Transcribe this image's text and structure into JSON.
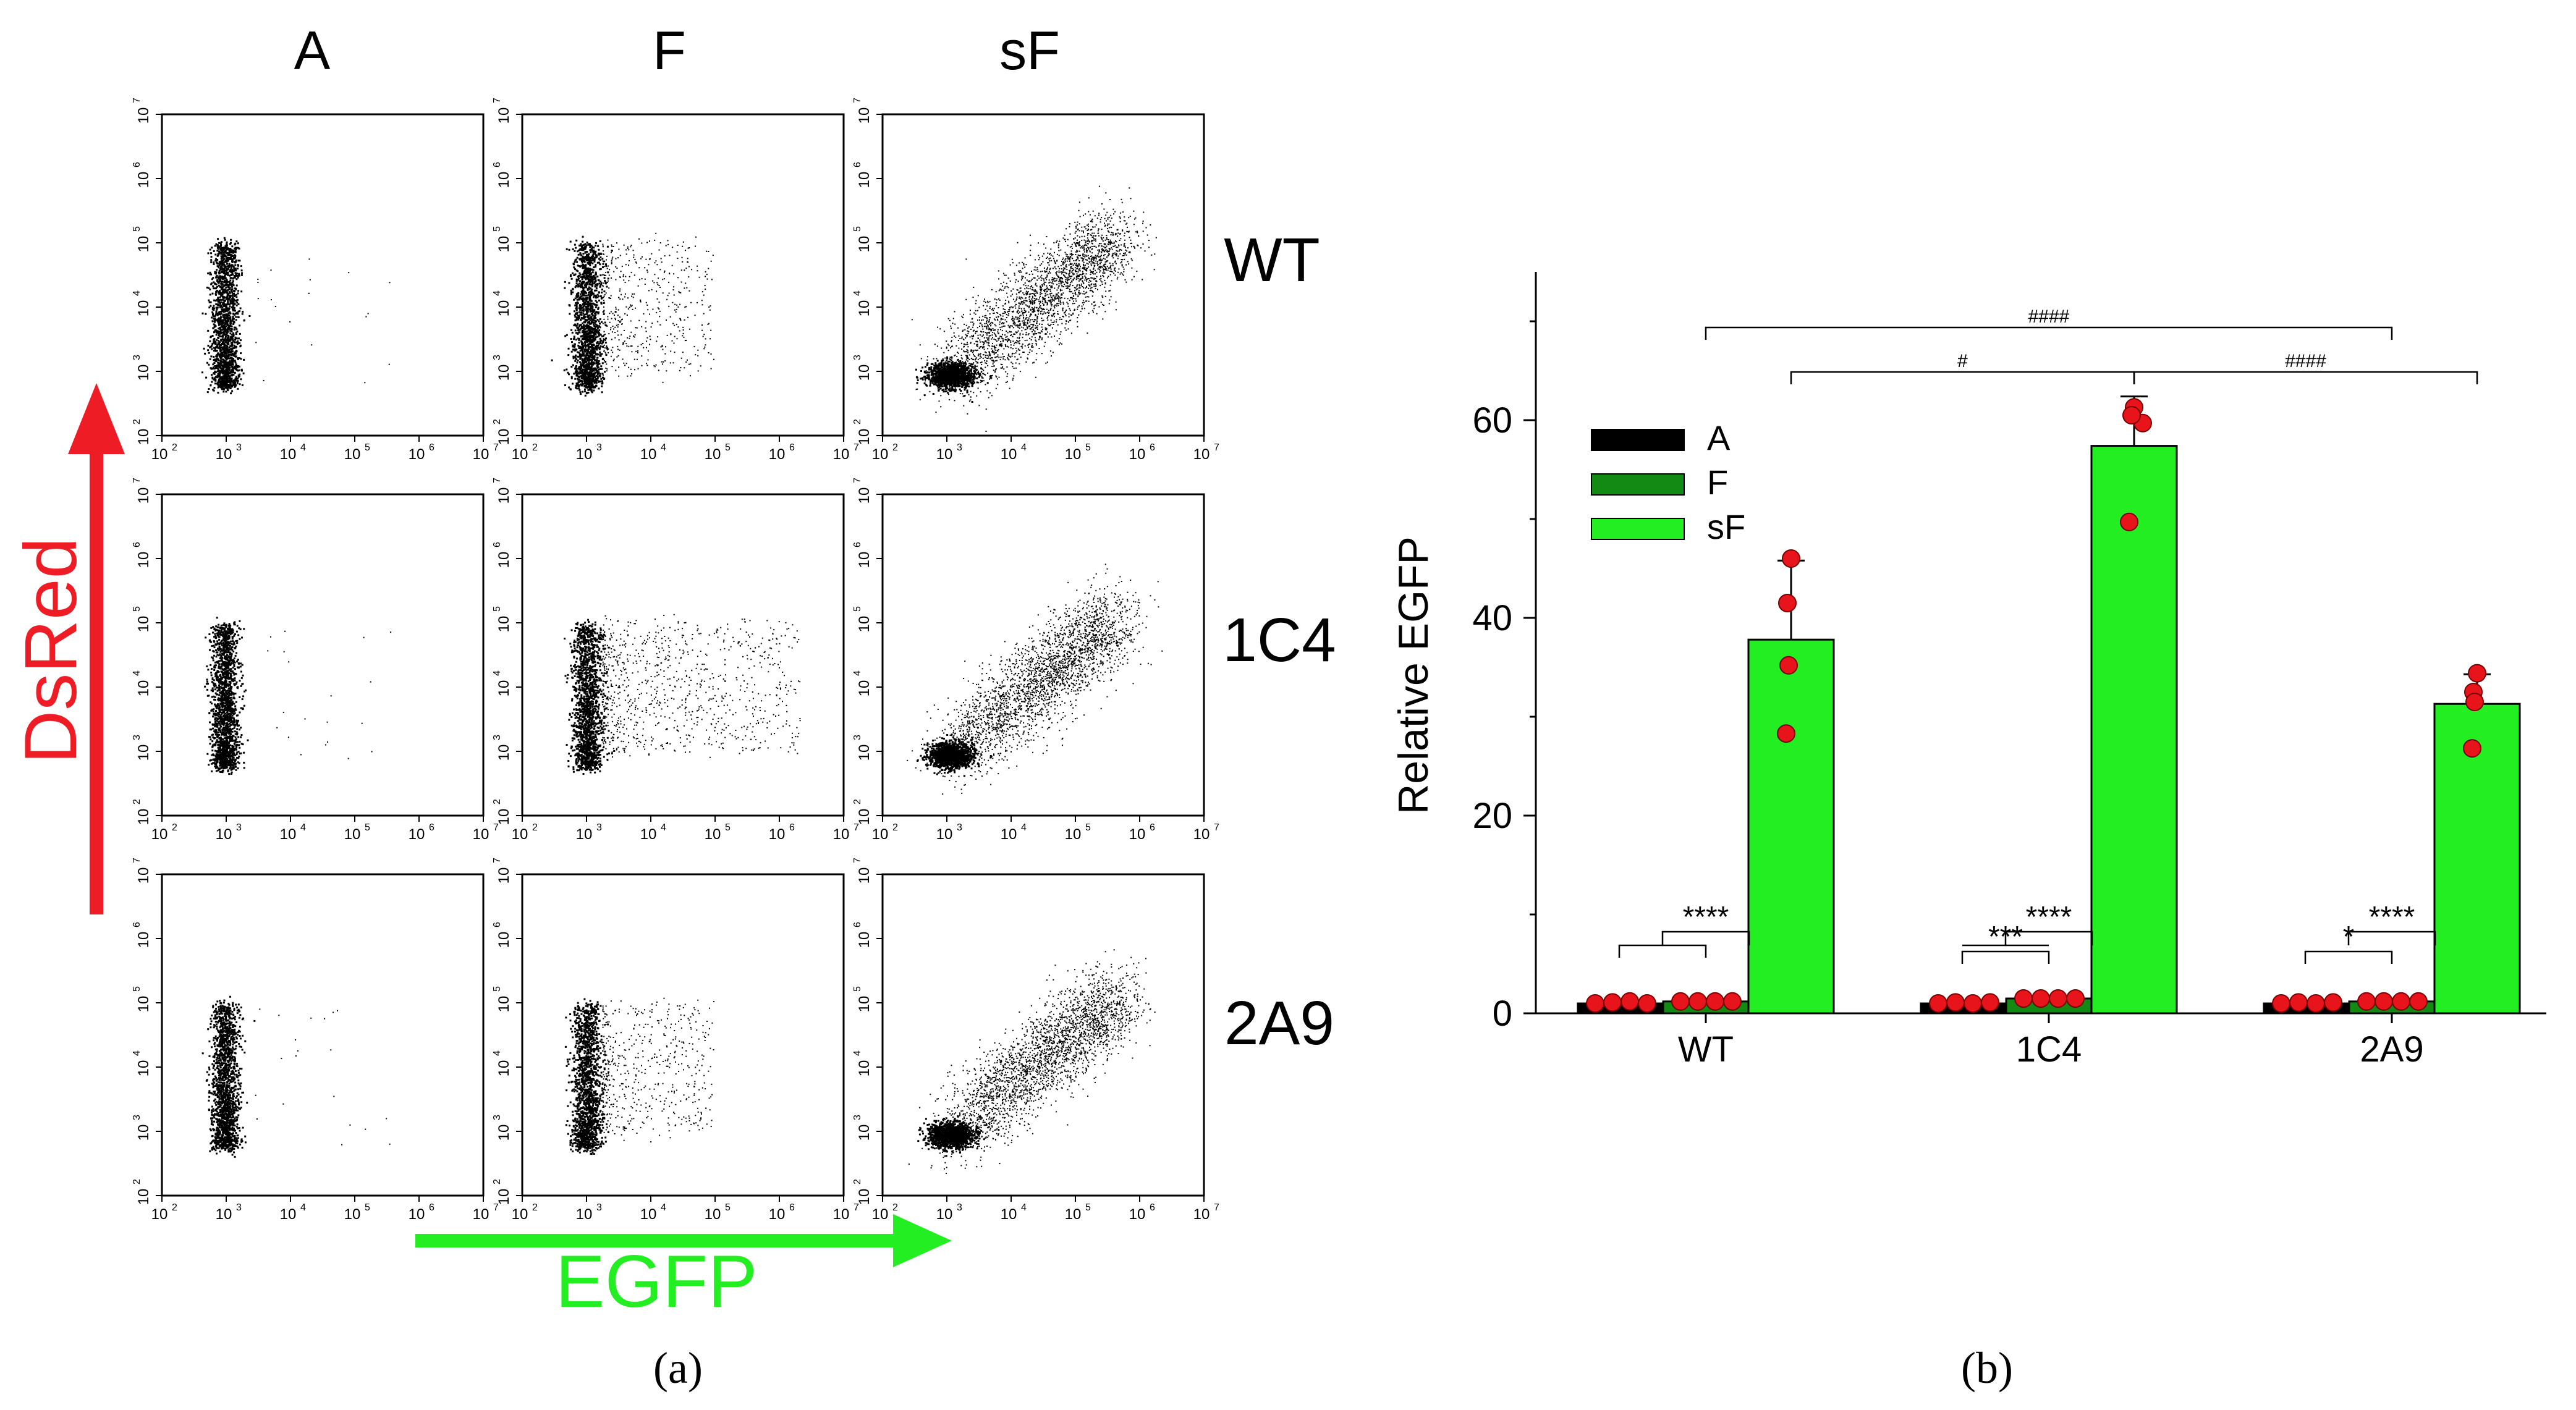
{
  "panel_a": {
    "column_headers": [
      "A",
      "F",
      "sF"
    ],
    "row_labels": [
      "WT",
      "1C4",
      "2A9"
    ],
    "tick_labels": [
      "10",
      "10",
      "10",
      "10",
      "10",
      "10"
    ],
    "tick_exponents": [
      "2",
      "3",
      "4",
      "5",
      "6",
      "7"
    ],
    "y_axis_label": "DsRed",
    "x_axis_label": "EGFP",
    "panel_label": "(a)",
    "colors": {
      "dsred": "#ee1c24",
      "egfp": "#22ee22",
      "dots": "#000000"
    }
  },
  "chart_data": {
    "type": "bar",
    "categories": [
      "WT",
      "1C4",
      "2A9"
    ],
    "ylabel": "Relative EGFP",
    "xlabel": "",
    "ylim": [
      0,
      75
    ],
    "yticks": [
      "0",
      "20",
      "40",
      "60"
    ],
    "ytick_values": [
      0,
      20,
      40,
      60
    ],
    "legend": [
      "A",
      "F",
      "sF"
    ],
    "series": [
      {
        "name": "A",
        "color": "#000000",
        "values": [
          1,
          1,
          1
        ],
        "errors": [
          0.1,
          0.1,
          0.1
        ],
        "points": [
          [
            1.0,
            1.1,
            1.2,
            1.0
          ],
          [
            1.0,
            1.1,
            1.0,
            1.1
          ],
          [
            1.0,
            1.1,
            1.0,
            1.1
          ]
        ]
      },
      {
        "name": "F",
        "color": "#138a13",
        "values": [
          1.2,
          1.5,
          1.2
        ],
        "errors": [
          0.1,
          0.1,
          0.1
        ],
        "points": [
          [
            1.2,
            1.2,
            1.2,
            1.2
          ],
          [
            1.5,
            1.5,
            1.5,
            1.5
          ],
          [
            1.2,
            1.2,
            1.2,
            1.2
          ]
        ]
      },
      {
        "name": "sF",
        "color": "#22ee22",
        "values": [
          37.8,
          57.4,
          31.3
        ],
        "errors": [
          8.0,
          5.0,
          3.0
        ],
        "points": [
          [
            46,
            41.5,
            35.2,
            28.3
          ],
          [
            61.3,
            59.7,
            60.5,
            49.7
          ],
          [
            34.4,
            32.5,
            31.5,
            26.8
          ]
        ]
      }
    ],
    "significance": [
      {
        "label": "****",
        "group": "WT",
        "bracket": "A+F vs sF"
      },
      {
        "label": "****",
        "group": "1C4",
        "bracket": "A+F vs sF"
      },
      {
        "label": "***",
        "group": "1C4",
        "bracket": "A vs F"
      },
      {
        "label": "****",
        "group": "2A9",
        "bracket": "A+F vs sF"
      },
      {
        "label": "*",
        "group": "2A9",
        "bracket": "A vs F"
      },
      {
        "label": "####",
        "bracket": "WT F vs 2A9 F"
      },
      {
        "label": "#",
        "bracket": "WT sF vs 1C4 sF"
      },
      {
        "label": "####",
        "bracket": "1C4 sF vs 2A9 sF"
      }
    ],
    "panel_label": "(b)"
  }
}
